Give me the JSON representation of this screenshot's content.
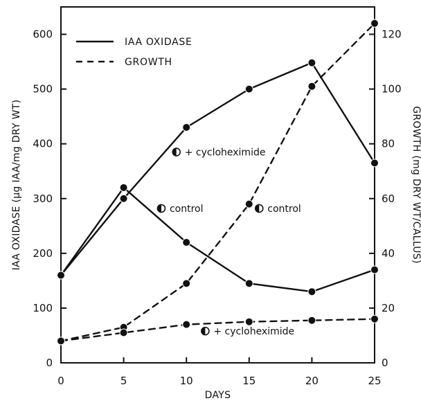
{
  "chart_data": {
    "type": "line",
    "title": "",
    "xlabel": "DAYS",
    "ylabel_left": "IAA OXIDASE (µg IAA/mg DRY WT)",
    "ylabel_right": "GROWTH (mg DRY WT/CALLUS)",
    "xlim": [
      0,
      25
    ],
    "ylim_left": [
      0,
      650
    ],
    "ylim_right": [
      0,
      130
    ],
    "x_ticks": [
      0,
      5,
      10,
      15,
      20,
      25
    ],
    "y_ticks_left": [
      0,
      100,
      200,
      300,
      400,
      500,
      600
    ],
    "y_ticks_right": [
      0,
      20,
      40,
      60,
      80,
      100,
      120
    ],
    "legend": [
      {
        "label": "IAA OXIDASE",
        "line_style": "solid"
      },
      {
        "label": "GROWTH",
        "line_style": "dashed"
      }
    ],
    "series": [
      {
        "metric": "IAA OXIDASE",
        "condition": "+ cycloheximide",
        "axis": "left",
        "line_style": "solid",
        "x": [
          0,
          5,
          10,
          15,
          20,
          25
        ],
        "y": [
          160,
          300,
          430,
          500,
          548,
          365
        ]
      },
      {
        "metric": "IAA OXIDASE",
        "condition": "control",
        "axis": "left",
        "line_style": "solid",
        "x": [
          0,
          5,
          10,
          15,
          20,
          25
        ],
        "y": [
          160,
          320,
          220,
          145,
          130,
          170
        ]
      },
      {
        "metric": "GROWTH",
        "condition": "control",
        "axis": "right",
        "line_style": "dashed",
        "x": [
          0,
          5,
          10,
          15,
          20,
          25
        ],
        "y": [
          8,
          13,
          29,
          58,
          101,
          124
        ]
      },
      {
        "metric": "GROWTH",
        "condition": "+ cycloheximide",
        "axis": "right",
        "line_style": "dashed",
        "x": [
          0,
          5,
          10,
          15,
          20,
          25
        ],
        "y": [
          8,
          11,
          14,
          15,
          15.5,
          16
        ]
      }
    ],
    "annotations": [
      {
        "text": "+ cycloheximide",
        "x": 9.2,
        "y_left": 385
      },
      {
        "text": "control",
        "x": 8.0,
        "y_left": 282
      },
      {
        "text": "control",
        "x": 15.8,
        "y_left": 282
      },
      {
        "text": "+ cycloheximide",
        "x": 11.5,
        "y_left": 58
      }
    ],
    "colors": {
      "line": "#111111",
      "background": "#ffffff"
    }
  }
}
